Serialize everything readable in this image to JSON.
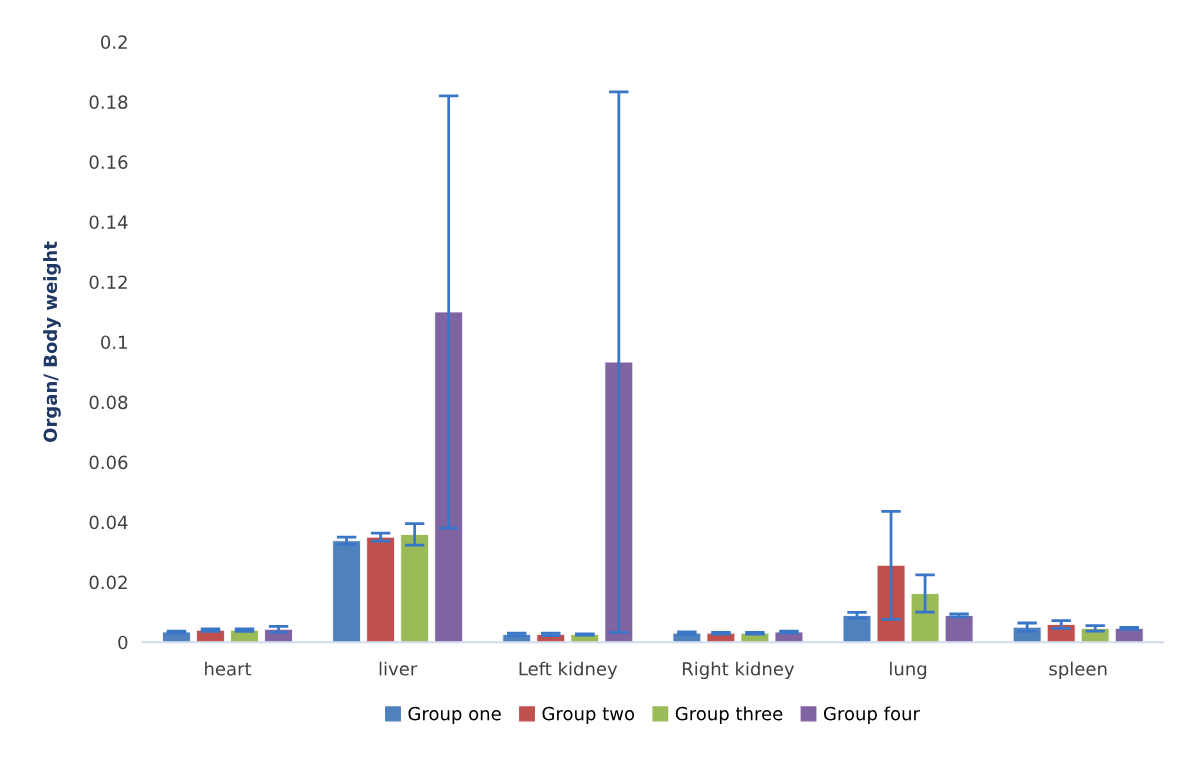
{
  "chart_data": {
    "type": "bar",
    "ylabel": "Organ/ Body weight",
    "categories": [
      "heart",
      "liver",
      "Left kidney",
      "Right kidney",
      "lung",
      "spleen"
    ],
    "series": [
      {
        "name": "Group one",
        "color": "#4f81bd",
        "values": [
          0.0034,
          0.0338,
          0.0026,
          0.003,
          0.0089,
          0.005
        ],
        "errors": [
          0.0003,
          0.0012,
          0.0004,
          0.0004,
          0.001,
          0.0014
        ]
      },
      {
        "name": "Group two",
        "color": "#c0504d",
        "values": [
          0.004,
          0.035,
          0.0026,
          0.003,
          0.0256,
          0.0059
        ],
        "errors": [
          0.0004,
          0.0013,
          0.0004,
          0.0003,
          0.018,
          0.0013
        ]
      },
      {
        "name": "Group three",
        "color": "#9bbb59",
        "values": [
          0.004,
          0.0359,
          0.0026,
          0.003,
          0.0162,
          0.0046
        ],
        "errors": [
          0.0004,
          0.0036,
          0.0002,
          0.0003,
          0.0062,
          0.0009
        ]
      },
      {
        "name": "Group four",
        "color": "#8064a2",
        "values": [
          0.0043,
          0.11,
          0.0933,
          0.0034,
          0.0089,
          0.0046
        ],
        "errors": [
          0.001,
          0.072,
          0.09,
          0.0003,
          0.0005,
          0.0003
        ]
      }
    ],
    "ylim": [
      0,
      0.2
    ],
    "yticks": [
      {
        "value": 0,
        "label": "0"
      },
      0.02,
      0.04,
      0.06,
      0.08,
      {
        "value": 0.1,
        "label": "0.1"
      },
      0.12,
      0.14,
      0.16,
      0.18,
      {
        "value": 0.2,
        "label": "0.2"
      }
    ],
    "grid": false,
    "legend": "bottom"
  }
}
